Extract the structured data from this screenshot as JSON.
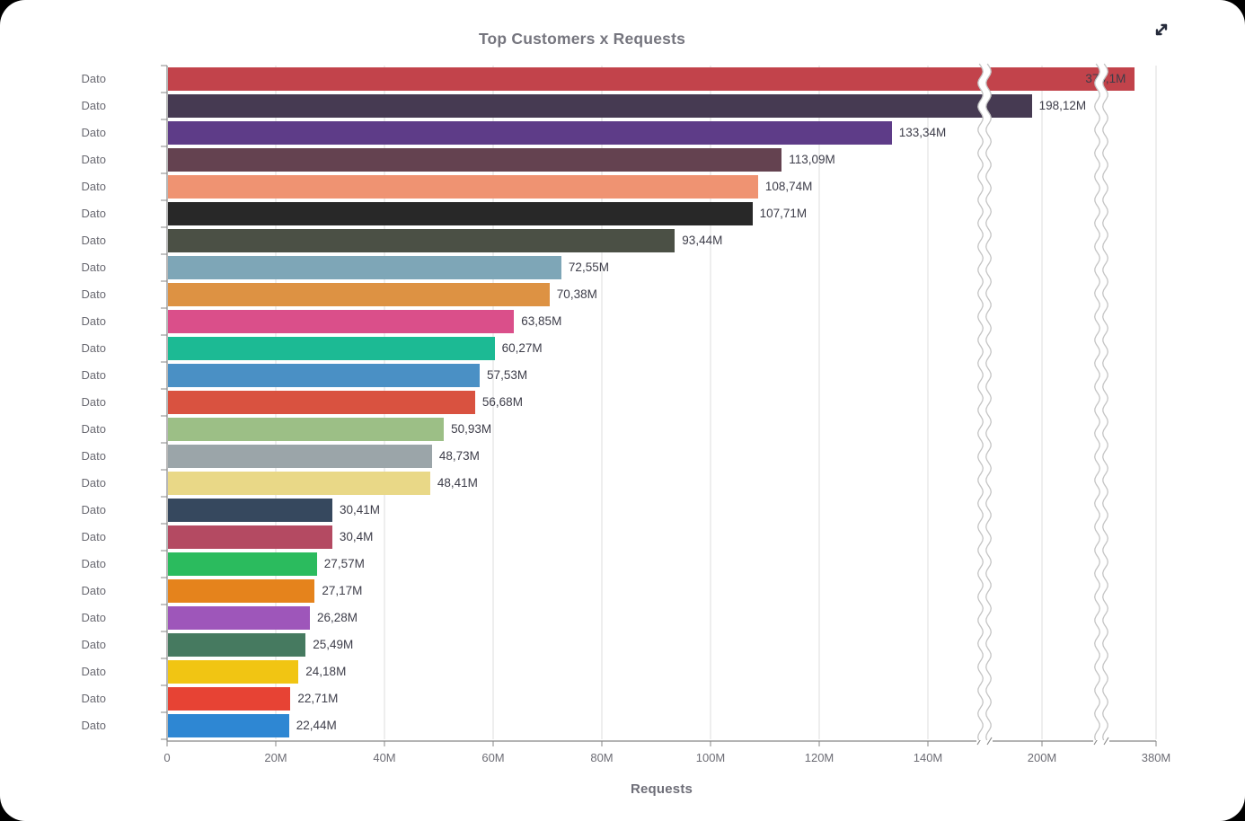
{
  "header": {
    "title": "Top Customers x Requests",
    "expand_icon": "expand-diagonal-arrows"
  },
  "chart_data": {
    "type": "bar",
    "orientation": "horizontal",
    "title": "Top Customers x Requests",
    "xlabel": "Requests",
    "ylabel": "",
    "grid": true,
    "legend": false,
    "categories": [
      "Dato",
      "Dato",
      "Dato",
      "Dato",
      "Dato",
      "Dato",
      "Dato",
      "Dato",
      "Dato",
      "Dato",
      "Dato",
      "Dato",
      "Dato",
      "Dato",
      "Dato",
      "Dato",
      "Dato",
      "Dato",
      "Dato",
      "Dato",
      "Dato",
      "Dato",
      "Dato",
      "Dato",
      "Dato"
    ],
    "values": [
      376.1,
      198.12,
      133.34,
      113.09,
      108.74,
      107.71,
      93.44,
      72.55,
      70.38,
      63.85,
      60.27,
      57.53,
      56.68,
      50.93,
      48.73,
      48.41,
      30.41,
      30.4,
      27.57,
      27.17,
      26.28,
      25.49,
      24.18,
      22.71,
      22.44
    ],
    "value_labels": [
      "376,1M",
      "198,12M",
      "133,34M",
      "113,09M",
      "108,74M",
      "107,71M",
      "93,44M",
      "72,55M",
      "70,38M",
      "63,85M",
      "60,27M",
      "57,53M",
      "56,68M",
      "50,93M",
      "48,73M",
      "48,41M",
      "30,41M",
      "30,4M",
      "27,57M",
      "27,17M",
      "26,28M",
      "25,49M",
      "24,18M",
      "22,71M",
      "22,44M"
    ],
    "bar_colors": [
      "#c2434b",
      "#463a52",
      "#5e3c88",
      "#644250",
      "#ef9372",
      "#282828",
      "#4b5045",
      "#7ea6b7",
      "#dd9243",
      "#da4f8a",
      "#1cba94",
      "#4a90c5",
      "#d95240",
      "#9cbf86",
      "#9ba5a9",
      "#e9d887",
      "#36485e",
      "#b44a62",
      "#2bbb5e",
      "#e5831c",
      "#9e56ba",
      "#467a60",
      "#f1c513",
      "#e74334",
      "#2e87d3"
    ],
    "x_ticks": {
      "labels": [
        "0",
        "20M",
        "40M",
        "60M",
        "80M",
        "100M",
        "120M",
        "140M",
        "200M",
        "380M"
      ],
      "values": [
        0,
        20,
        40,
        60,
        80,
        100,
        120,
        140,
        200,
        380
      ]
    },
    "axis_breaks": [
      {
        "from": 150,
        "to": 189.5
      },
      {
        "from": 210.5,
        "to": 369.5
      }
    ],
    "unit": "M requests",
    "colors": {
      "gridline": "#dcdcdc",
      "axis": "#878787",
      "value_label": "#3d3d49",
      "tick_label": "#6d6d75",
      "title": "#75757e"
    }
  }
}
